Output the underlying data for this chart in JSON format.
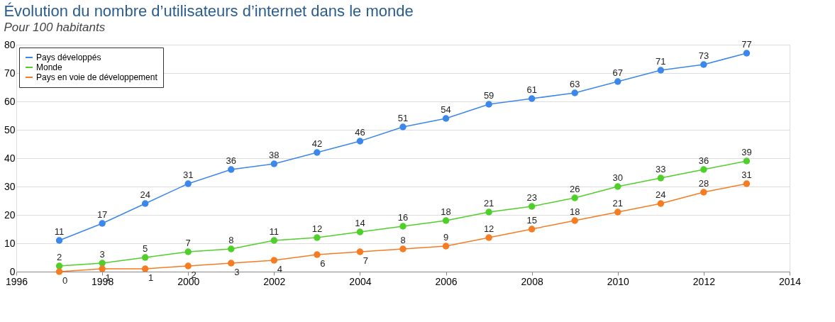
{
  "chart_data": {
    "type": "line",
    "title": "Évolution du nombre d’utilisateurs d’internet dans le monde",
    "subtitle": "Pour 100 habitants",
    "x": [
      1997,
      1998,
      1999,
      2000,
      2001,
      2002,
      2003,
      2004,
      2005,
      2006,
      2007,
      2008,
      2009,
      2010,
      2011,
      2012,
      2013
    ],
    "series": [
      {
        "name": "Pays développés",
        "color": "#3c87ec",
        "values": [
          11,
          17,
          24,
          31,
          36,
          38,
          42,
          46,
          51,
          54,
          59,
          61,
          63,
          67,
          71,
          73,
          77
        ]
      },
      {
        "name": "Monde",
        "color": "#4fcf2a",
        "values": [
          2,
          3,
          5,
          7,
          8,
          11,
          12,
          14,
          16,
          18,
          21,
          23,
          26,
          30,
          33,
          36,
          39
        ]
      },
      {
        "name": "Pays en voie de développement",
        "color": "#f57c22",
        "values": [
          0,
          1,
          1,
          2,
          3,
          4,
          6,
          7,
          8,
          9,
          12,
          15,
          18,
          21,
          24,
          28,
          31
        ]
      }
    ],
    "xlim": [
      1996,
      2014
    ],
    "xticks": [
      1996,
      1998,
      2000,
      2002,
      2004,
      2006,
      2008,
      2010,
      2012,
      2014
    ],
    "ylim": [
      0,
      80
    ],
    "yticks": [
      0,
      10,
      20,
      30,
      40,
      50,
      60,
      70,
      80
    ],
    "grid": "y",
    "legend": "top left",
    "marker": "circle",
    "line_style": "solid",
    "data_labels": true
  }
}
